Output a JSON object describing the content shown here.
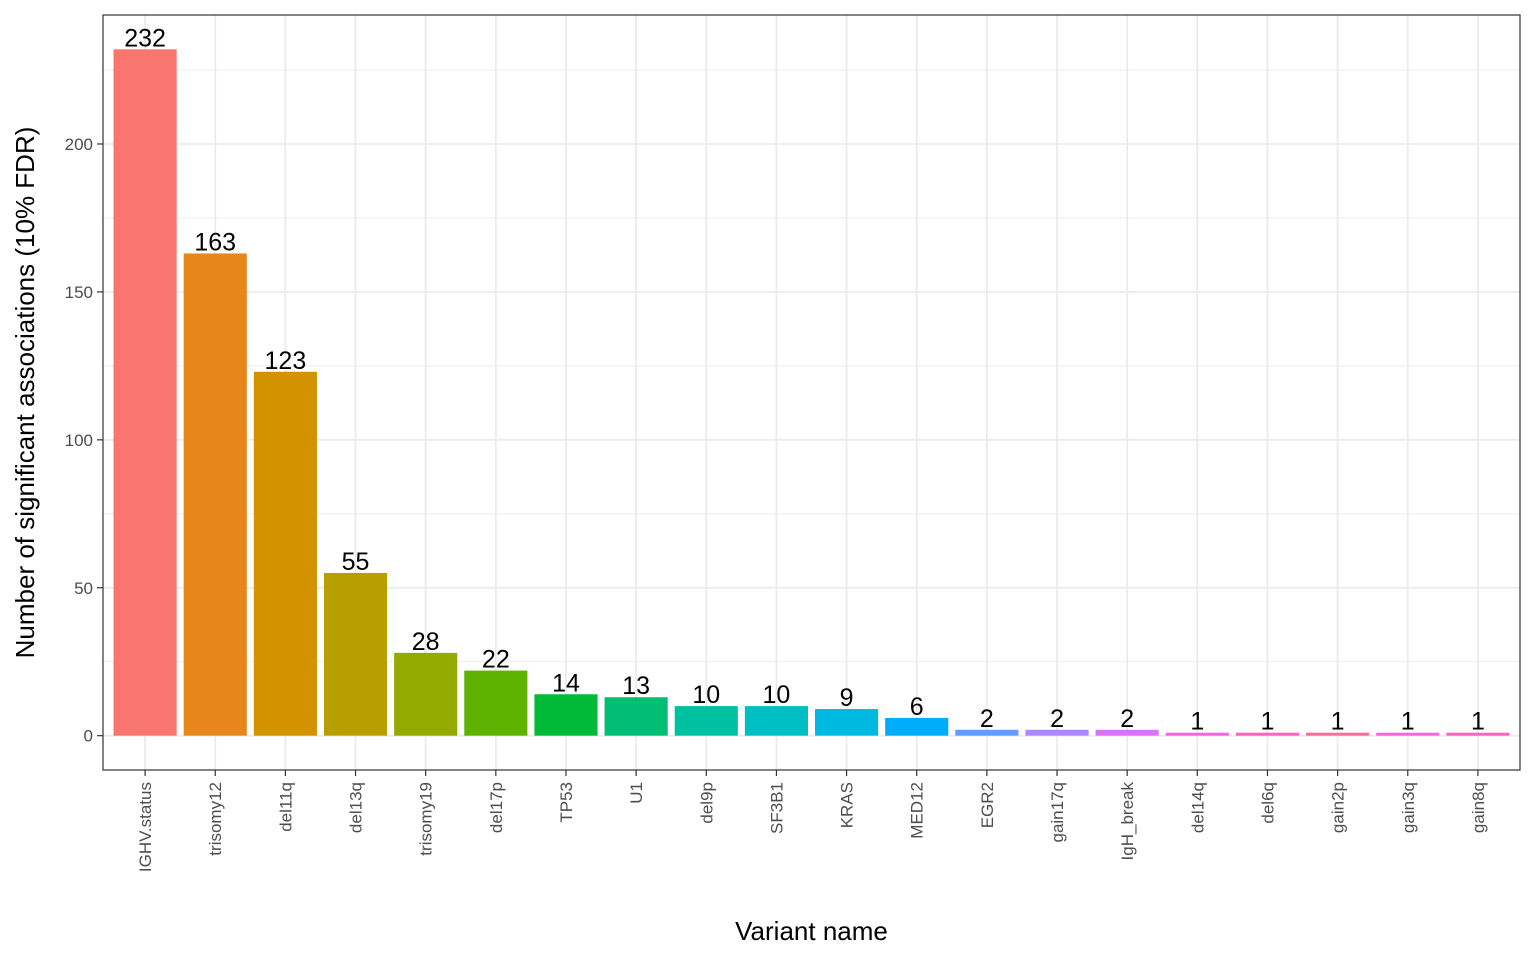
{
  "chart_data": {
    "type": "bar",
    "title": "",
    "xlabel": "Variant name",
    "ylabel": "Number of significant associations (10% FDR)",
    "categories": [
      "IGHV.status",
      "trisomy12",
      "del11q",
      "del13q",
      "trisomy19",
      "del17p",
      "TP53",
      "U1",
      "del9p",
      "SF3B1",
      "KRAS",
      "MED12",
      "EGR2",
      "gain17q",
      "IgH_break",
      "del14q",
      "del6q",
      "gain2p",
      "gain3q",
      "gain8q"
    ],
    "values": [
      232,
      163,
      123,
      55,
      28,
      22,
      14,
      13,
      10,
      10,
      9,
      6,
      2,
      2,
      2,
      1,
      1,
      1,
      1,
      1
    ],
    "colors": [
      "#F8766D",
      "#E7861B",
      "#D39200",
      "#B79F00",
      "#93AA00",
      "#5EB300",
      "#00BA38",
      "#00BF74",
      "#00C19F",
      "#00BFC4",
      "#00B9E3",
      "#00ADFA",
      "#619CFF",
      "#AE87FF",
      "#DB72FB",
      "#F564E3",
      "#FF61C3",
      "#FF699C",
      "#F564E3",
      "#FF61C3"
    ],
    "yticks": [
      0,
      50,
      100,
      150,
      200
    ],
    "ylim": [
      -11.6,
      243.6
    ],
    "grid": true,
    "legend": "none"
  }
}
